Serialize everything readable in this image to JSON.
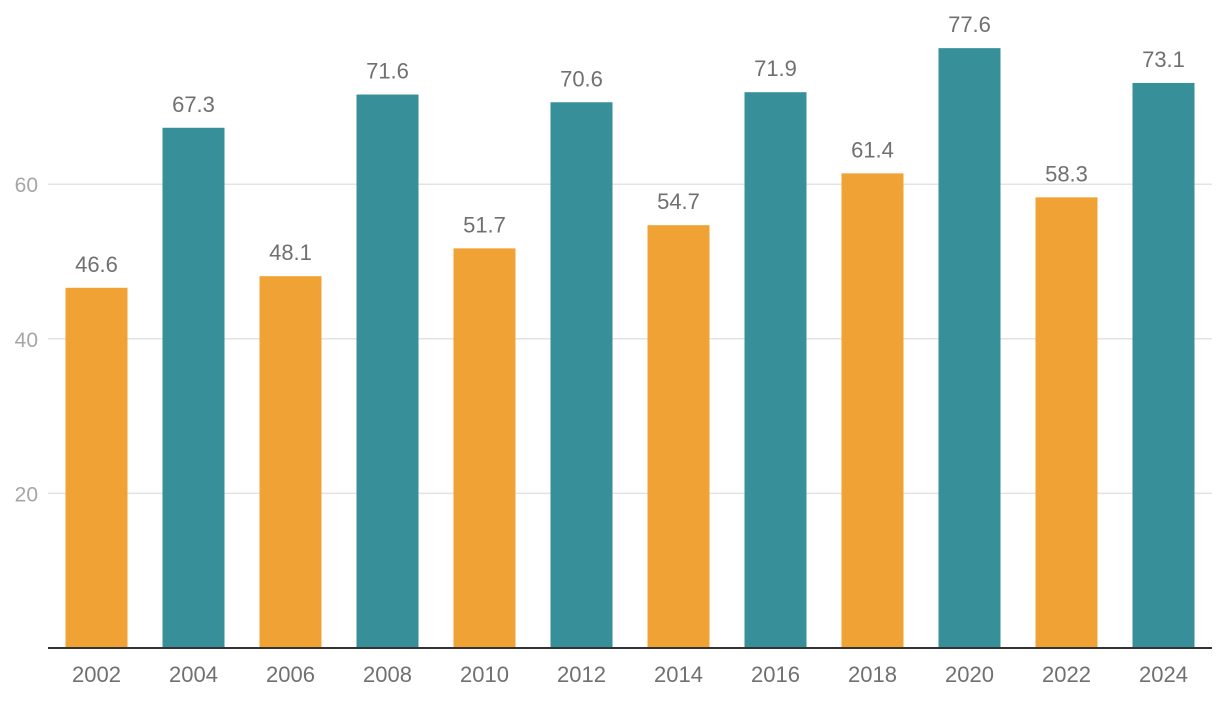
{
  "chart_data": {
    "type": "bar",
    "categories": [
      "2002",
      "2004",
      "2006",
      "2008",
      "2010",
      "2012",
      "2014",
      "2016",
      "2018",
      "2020",
      "2022",
      "2024"
    ],
    "values": [
      46.6,
      67.3,
      48.1,
      71.6,
      51.7,
      70.6,
      54.7,
      71.9,
      61.4,
      77.6,
      58.3,
      73.1
    ],
    "value_labels": [
      "46.6",
      "67.3",
      "48.1",
      "71.6",
      "51.7",
      "70.6",
      "54.7",
      "71.9",
      "61.4",
      "77.6",
      "58.3",
      "73.1"
    ],
    "bar_color_groups": [
      "midterm",
      "presidential",
      "midterm",
      "presidential",
      "midterm",
      "presidential",
      "midterm",
      "presidential",
      "midterm",
      "presidential",
      "midterm",
      "presidential"
    ],
    "ylim": [
      0,
      80
    ],
    "yticks": [
      20,
      40,
      60
    ],
    "ytick_labels": [
      "20",
      "40",
      "60"
    ],
    "grid": true,
    "title": "",
    "xlabel": "",
    "ylabel": ""
  },
  "colors": {
    "midterm": "#F0A235",
    "presidential": "#368F99",
    "grid": "#e3e3e3",
    "axis": "#333333"
  }
}
